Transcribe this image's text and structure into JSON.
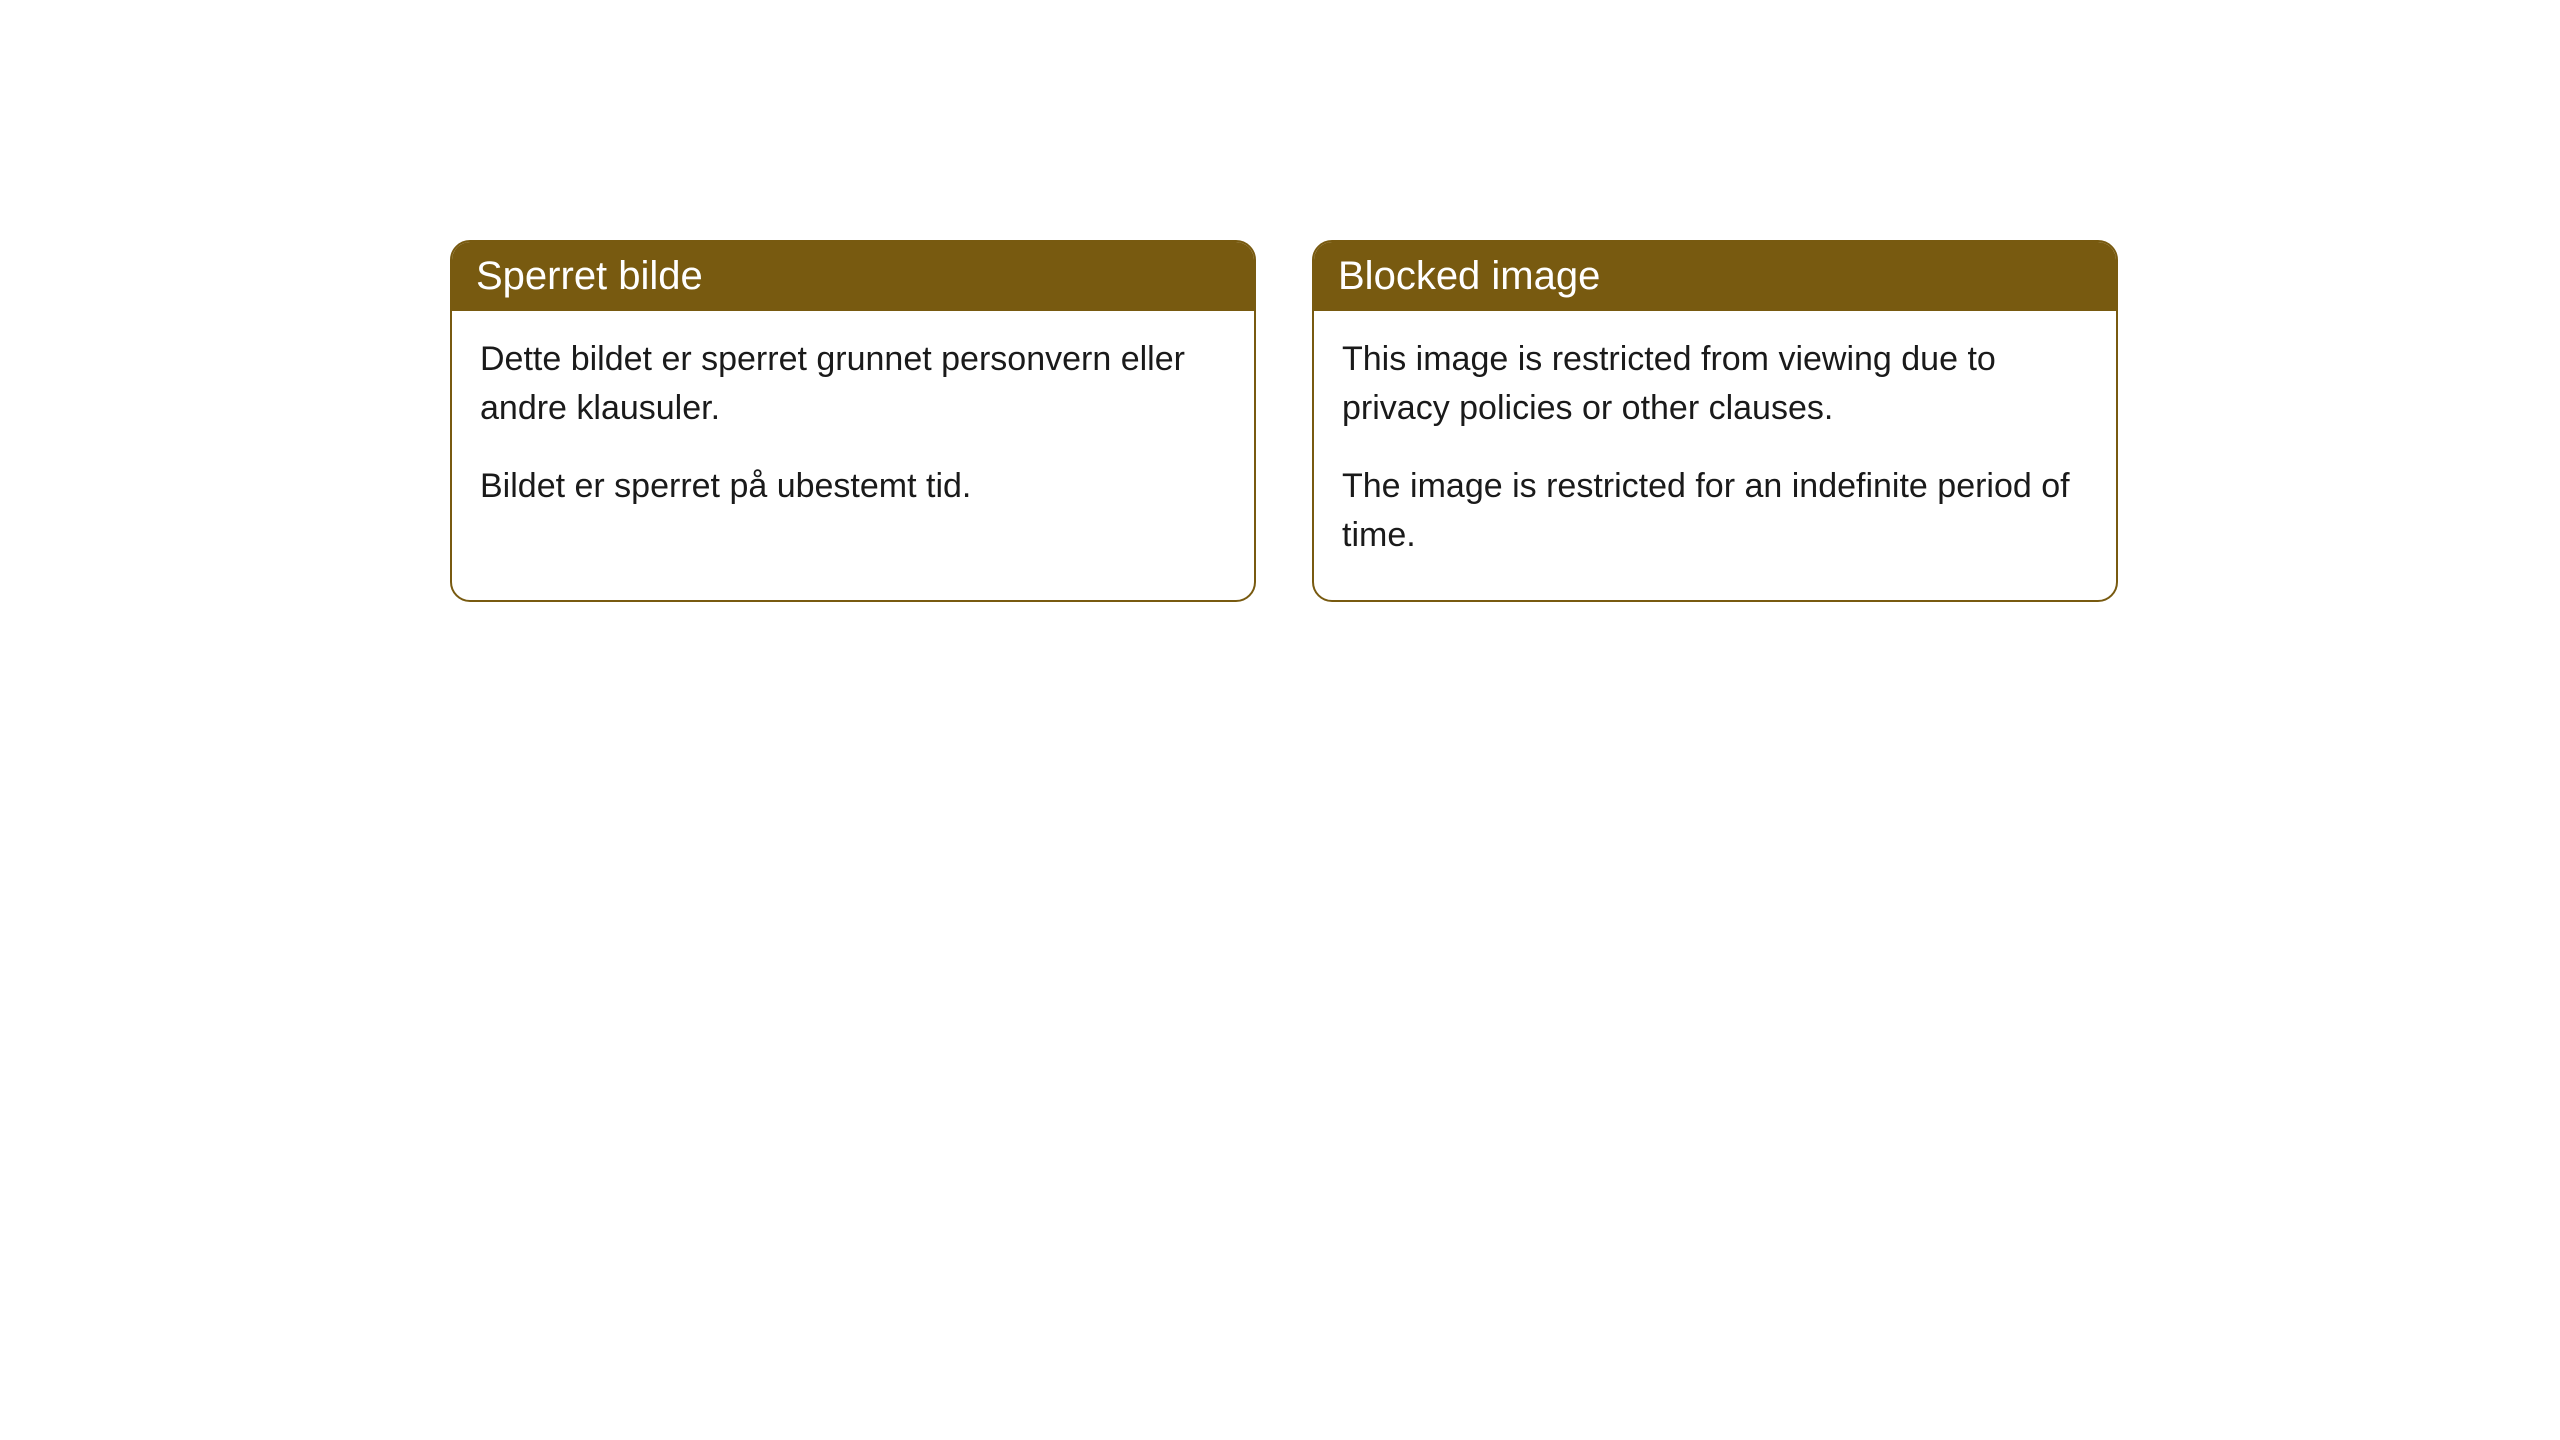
{
  "cards": [
    {
      "title": "Sperret bilde",
      "paragraph1": "Dette bildet er sperret grunnet personvern eller andre klausuler.",
      "paragraph2": "Bildet er sperret på ubestemt tid."
    },
    {
      "title": "Blocked image",
      "paragraph1": "This image is restricted from viewing due to privacy policies or other clauses.",
      "paragraph2": "The image is restricted for an indefinite period of time."
    }
  ],
  "styling": {
    "header_background": "#785a10",
    "header_text_color": "#ffffff",
    "border_color": "#785a10",
    "body_background": "#ffffff",
    "body_text_color": "#1a1a1a",
    "border_radius": 20,
    "header_fontsize": 40,
    "body_fontsize": 34
  }
}
